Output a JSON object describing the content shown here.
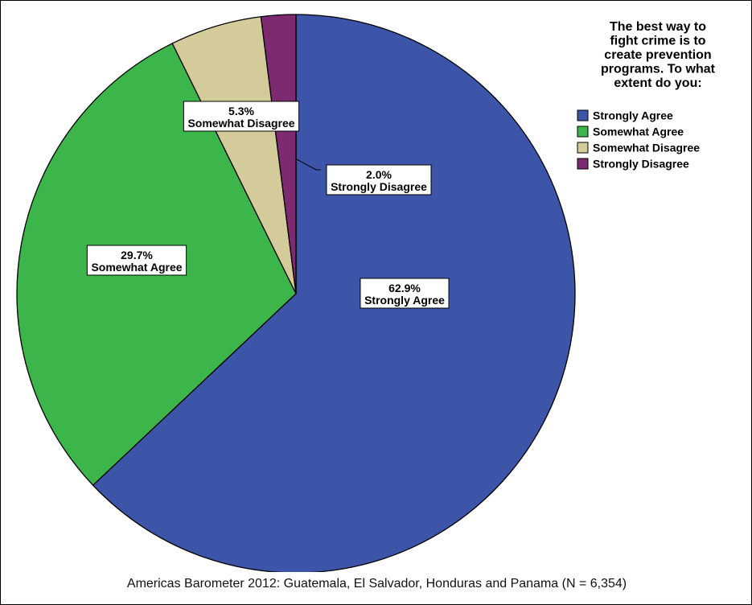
{
  "chart_data": {
    "type": "pie",
    "legend_title": "The best way to fight crime is to create prevention programs. To what extent do you:",
    "legend_title_lines": [
      "The best way to",
      "fight crime is to",
      "create prevention",
      "programs. To what",
      "extent do you:"
    ],
    "legend_position": "top-right",
    "slices": [
      {
        "name": "Strongly Agree",
        "value": 62.9,
        "pct_label": "62.9%",
        "color": "#3C55A9"
      },
      {
        "name": "Somewhat  Agree",
        "value": 29.7,
        "pct_label": "29.7%",
        "color": "#3CB64A"
      },
      {
        "name": "Somewhat Disagree",
        "value": 5.3,
        "pct_label": "5.3%",
        "color": "#D3CC9A"
      },
      {
        "name": "Strongly Disagree",
        "value": 2.0,
        "pct_label": "2.0%",
        "color": "#7D2A71"
      }
    ],
    "caption": "Americas Barometer 2012: Guatemala, El Salvador, Honduras and Panama (N = 6,354)"
  }
}
